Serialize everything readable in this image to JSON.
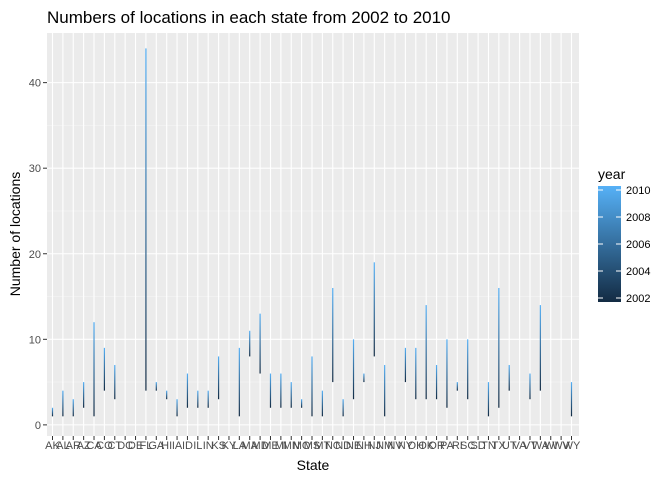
{
  "chart_data": {
    "type": "line",
    "title": "Numbers of locations in each state from 2002 to 2010",
    "xlabel": "State",
    "ylabel": "Number of locations",
    "ylim": [
      -1.3,
      45.8
    ],
    "yticks": [
      0,
      10,
      20,
      30,
      40
    ],
    "grid": true,
    "legend": {
      "title": "year",
      "position": "right",
      "ticks": [
        "2010",
        "2008",
        "2006",
        "2004",
        "2002"
      ],
      "range": [
        2002,
        2010
      ],
      "low_color": "#132B43",
      "high_color": "#56B1F7"
    },
    "categories": [
      "AK",
      "AL",
      "AR",
      "AZ",
      "CA",
      "CO",
      "CT",
      "DC",
      "DE",
      "FL",
      "GA",
      "HI",
      "IA",
      "ID",
      "IL",
      "IN",
      "KS",
      "KY",
      "LA",
      "MA",
      "MD",
      "ME",
      "MI",
      "MN",
      "MO",
      "MS",
      "MT",
      "NC",
      "ND",
      "NE",
      "NH",
      "NJ",
      "NM",
      "NV",
      "NY",
      "OH",
      "OK",
      "OR",
      "PA",
      "RI",
      "SC",
      "SD",
      "TN",
      "TX",
      "UT",
      "VA",
      "VT",
      "WA",
      "WI",
      "WV",
      "WY"
    ],
    "series": [
      {
        "state": "AK",
        "min": 1,
        "max": 2
      },
      {
        "state": "AL",
        "min": 1,
        "max": 4
      },
      {
        "state": "AR",
        "min": 1,
        "max": 3
      },
      {
        "state": "AZ",
        "min": 2,
        "max": 5
      },
      {
        "state": "CA",
        "min": 1,
        "max": 12
      },
      {
        "state": "CO",
        "min": 4,
        "max": 9
      },
      {
        "state": "CT",
        "min": 3,
        "max": 7
      },
      {
        "state": "DC",
        "min": null,
        "max": null
      },
      {
        "state": "DE",
        "min": null,
        "max": null
      },
      {
        "state": "FL",
        "min": 4,
        "max": 44
      },
      {
        "state": "GA",
        "min": 4,
        "max": 5
      },
      {
        "state": "HI",
        "min": 3,
        "max": 4
      },
      {
        "state": "IA",
        "min": 1,
        "max": 3
      },
      {
        "state": "ID",
        "min": 2,
        "max": 6
      },
      {
        "state": "IL",
        "min": 2,
        "max": 4
      },
      {
        "state": "IN",
        "min": 2,
        "max": 4
      },
      {
        "state": "KS",
        "min": 3,
        "max": 8
      },
      {
        "state": "KY",
        "min": null,
        "max": null
      },
      {
        "state": "LA",
        "min": 1,
        "max": 9
      },
      {
        "state": "MA",
        "min": 8,
        "max": 11
      },
      {
        "state": "MD",
        "min": 6,
        "max": 13
      },
      {
        "state": "ME",
        "min": 2,
        "max": 6
      },
      {
        "state": "MI",
        "min": 2,
        "max": 6
      },
      {
        "state": "MN",
        "min": 2,
        "max": 5
      },
      {
        "state": "MO",
        "min": 2,
        "max": 3
      },
      {
        "state": "MS",
        "min": 1,
        "max": 8
      },
      {
        "state": "MT",
        "min": 1,
        "max": 4
      },
      {
        "state": "NC",
        "min": 5,
        "max": 16
      },
      {
        "state": "ND",
        "min": 1,
        "max": 3
      },
      {
        "state": "NE",
        "min": 3,
        "max": 10
      },
      {
        "state": "NH",
        "min": 5,
        "max": 6
      },
      {
        "state": "NJ",
        "min": 8,
        "max": 19
      },
      {
        "state": "NM",
        "min": 1,
        "max": 7
      },
      {
        "state": "NV",
        "min": null,
        "max": null
      },
      {
        "state": "NY",
        "min": 5,
        "max": 9
      },
      {
        "state": "OH",
        "min": 3,
        "max": 9
      },
      {
        "state": "OK",
        "min": 3,
        "max": 14
      },
      {
        "state": "OR",
        "min": 3,
        "max": 7
      },
      {
        "state": "PA",
        "min": 2,
        "max": 10
      },
      {
        "state": "RI",
        "min": 4,
        "max": 5
      },
      {
        "state": "SC",
        "min": 3,
        "max": 10
      },
      {
        "state": "SD",
        "min": null,
        "max": null
      },
      {
        "state": "TN",
        "min": 1,
        "max": 5
      },
      {
        "state": "TX",
        "min": 2,
        "max": 16
      },
      {
        "state": "UT",
        "min": 4,
        "max": 7
      },
      {
        "state": "VA",
        "min": null,
        "max": null
      },
      {
        "state": "VT",
        "min": 3,
        "max": 6
      },
      {
        "state": "WA",
        "min": 4,
        "max": 14
      },
      {
        "state": "WI",
        "min": null,
        "max": null
      },
      {
        "state": "WV",
        "min": null,
        "max": null
      },
      {
        "state": "WY",
        "min": 1,
        "max": 5
      }
    ]
  }
}
